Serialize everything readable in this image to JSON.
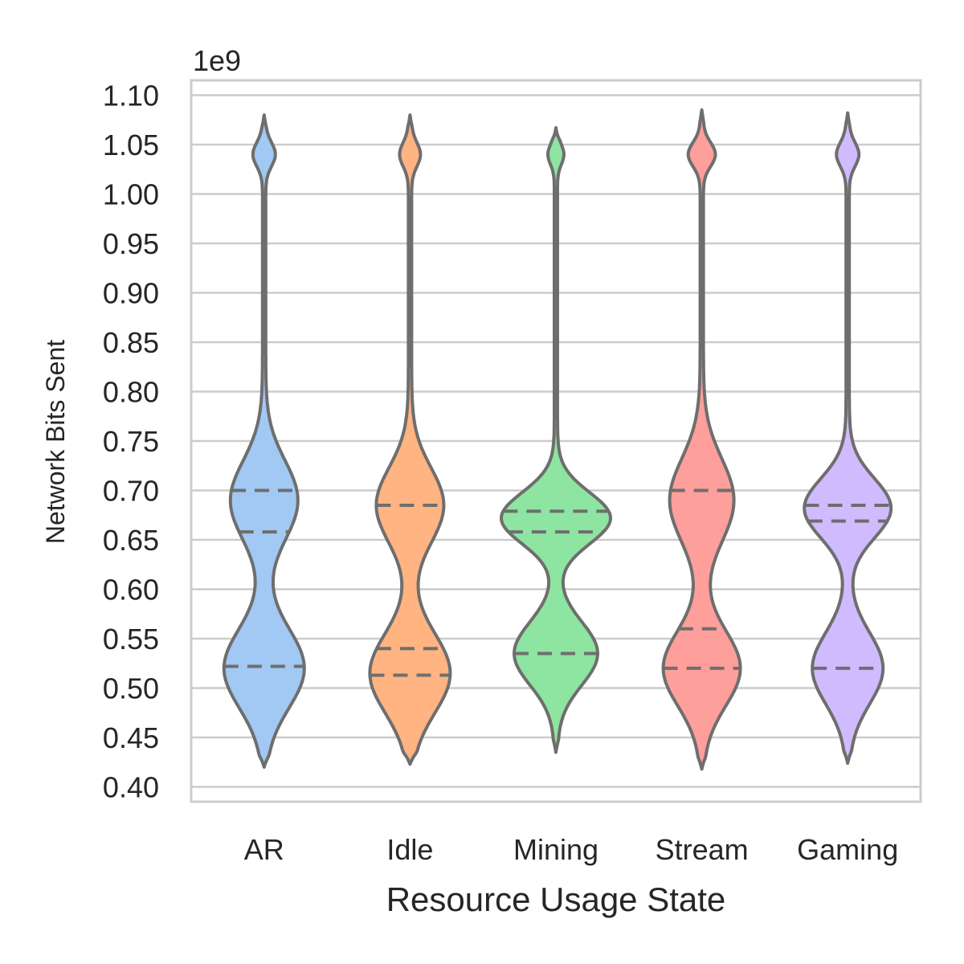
{
  "chart_data": {
    "type": "violin",
    "xlabel": "Resource Usage State",
    "ylabel": "Network Bits Sent",
    "offset_label": "1e9",
    "y_scale_factor": 1000000000,
    "ylim": [
      0.385,
      1.115
    ],
    "yticks": [
      0.4,
      0.45,
      0.5,
      0.55,
      0.6,
      0.65,
      0.7,
      0.75,
      0.8,
      0.85,
      0.9,
      0.95,
      1.0,
      1.05,
      1.1
    ],
    "ytick_labels": [
      "0.40",
      "0.45",
      "0.50",
      "0.55",
      "0.60",
      "0.65",
      "0.70",
      "0.75",
      "0.80",
      "0.85",
      "0.90",
      "0.95",
      "1.00",
      "1.05",
      "1.10"
    ],
    "grid": true,
    "inner": "quartile",
    "categories": [
      "AR",
      "Idle",
      "Mining",
      "Stream",
      "Gaming"
    ],
    "series": [
      {
        "category": "AR",
        "color": "#a1c9f4",
        "min": 0.42,
        "max": 1.08,
        "quartiles": [
          0.522,
          0.658,
          0.7
        ],
        "modes": [
          [
            0.52,
            0.04,
            48
          ],
          [
            0.69,
            0.04,
            40
          ],
          [
            1.04,
            0.012,
            12
          ]
        ]
      },
      {
        "category": "Idle",
        "color": "#ffb482",
        "min": 0.423,
        "max": 1.08,
        "quartiles": [
          0.513,
          0.54,
          0.685
        ],
        "modes": [
          [
            0.515,
            0.04,
            48
          ],
          [
            0.685,
            0.038,
            40
          ],
          [
            1.04,
            0.012,
            11
          ]
        ]
      },
      {
        "category": "Mining",
        "color": "#8de5a1",
        "min": 0.435,
        "max": 1.067,
        "quartiles": [
          0.535,
          0.658,
          0.679
        ],
        "modes": [
          [
            0.535,
            0.032,
            50
          ],
          [
            0.672,
            0.026,
            66
          ],
          [
            1.04,
            0.01,
            8
          ]
        ]
      },
      {
        "category": "Stream",
        "color": "#ff9f9b",
        "min": 0.418,
        "max": 1.085,
        "quartiles": [
          0.52,
          0.56,
          0.7
        ],
        "modes": [
          [
            0.52,
            0.038,
            46
          ],
          [
            0.69,
            0.042,
            38
          ],
          [
            1.04,
            0.012,
            15
          ]
        ]
      },
      {
        "category": "Gaming",
        "color": "#d0bbff",
        "min": 0.424,
        "max": 1.082,
        "quartiles": [
          0.52,
          0.669,
          0.685
        ],
        "modes": [
          [
            0.52,
            0.036,
            42
          ],
          [
            0.682,
            0.03,
            52
          ],
          [
            1.04,
            0.012,
            12
          ]
        ]
      }
    ]
  }
}
